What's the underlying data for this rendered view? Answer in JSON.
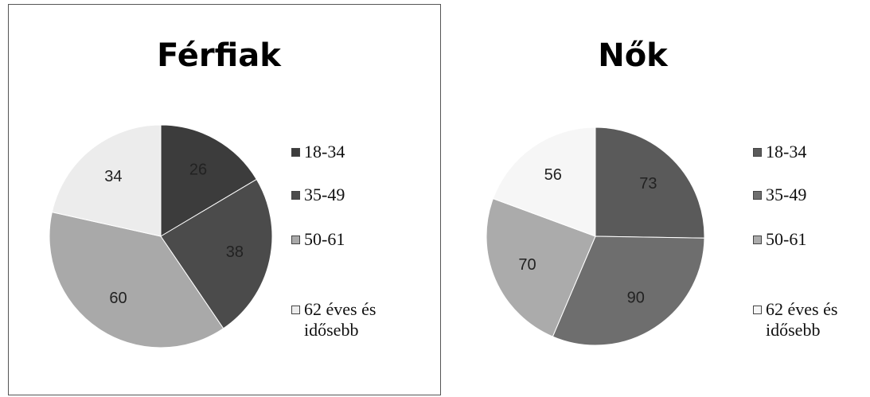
{
  "chart_data": [
    {
      "type": "pie",
      "title": "Férfiak",
      "categories": [
        "18-34",
        "35-49",
        "50-61",
        "62 éves és idősebb"
      ],
      "values": [
        26,
        38,
        60,
        34
      ],
      "colors": [
        "#3c3c3c",
        "#4b4b4b",
        "#a9a9a9",
        "#ececec"
      ]
    },
    {
      "type": "pie",
      "title": "Nők",
      "categories": [
        "18-34",
        "35-49",
        "50-61",
        "62 éves és idősebb"
      ],
      "values": [
        73,
        90,
        70,
        56
      ],
      "colors": [
        "#5a5a5a",
        "#6e6e6e",
        "#ababab",
        "#f6f6f6"
      ]
    }
  ]
}
